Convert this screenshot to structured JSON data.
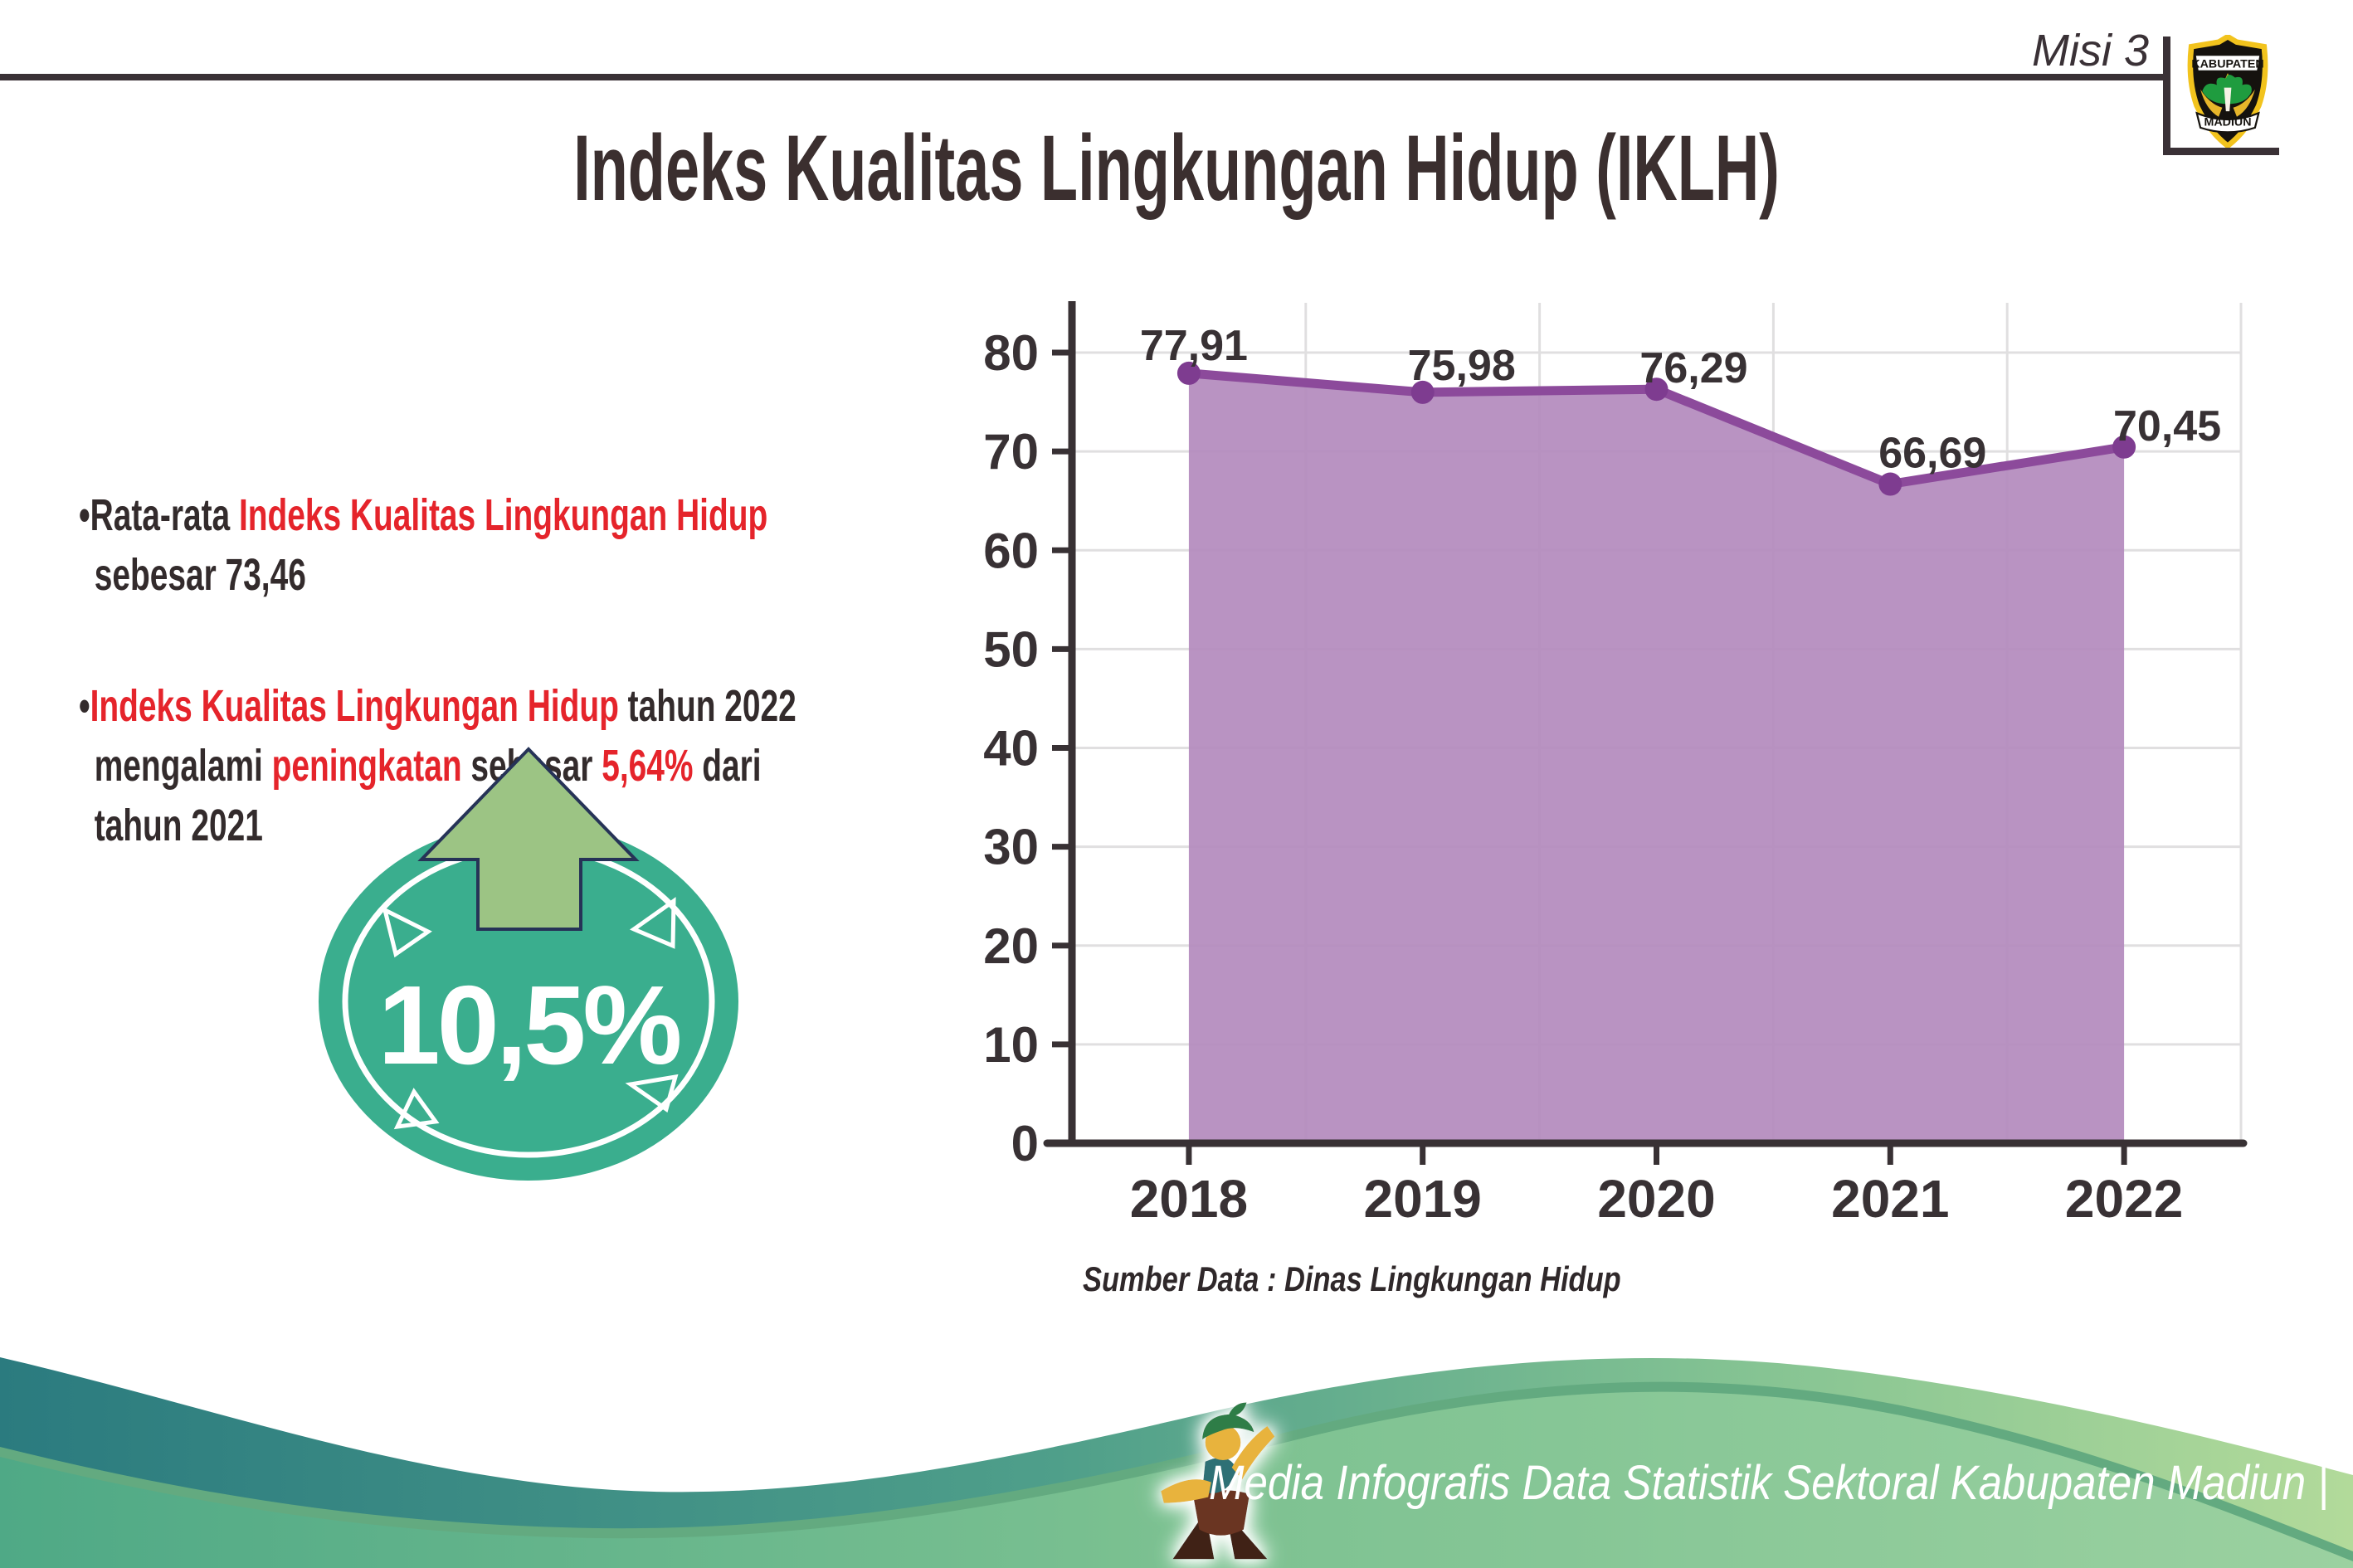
{
  "header": {
    "misi_label": "Misi 3",
    "title": "Indeks Kualitas Lingkungan Hidup (IKLH)"
  },
  "logo": {
    "top_text": "KABUPATEN",
    "bottom_text": "MADIUN"
  },
  "bullets": {
    "marker": "•",
    "items": [
      {
        "lines": [
          [
            {
              "t": "Rata-rata ",
              "red": false
            },
            {
              "t": "Indeks Kualitas Lingkungan Hidup",
              "red": true
            }
          ],
          [
            {
              "t": "sebesar 73,46",
              "red": false
            }
          ]
        ]
      },
      {
        "lines": [
          [
            {
              "t": "Indeks Kualitas Lingkungan Hidup",
              "red": true
            },
            {
              "t": " tahun 2022",
              "red": false
            }
          ],
          [
            {
              "t": "mengalami ",
              "red": false
            },
            {
              "t": "peningkatan",
              "red": true
            },
            {
              "t": " sebesar ",
              "red": false
            },
            {
              "t": "5,64%",
              "red": true
            },
            {
              "t": " dari",
              "red": false
            }
          ],
          [
            {
              "t": "tahun 2021",
              "red": false
            }
          ]
        ]
      }
    ]
  },
  "badge": {
    "value": "10,5%",
    "circle_color": "#3aae8e",
    "arrow_color": "#9cc484",
    "arrow_outline": "#263357"
  },
  "chart_data": {
    "type": "area",
    "categories": [
      "2018",
      "2019",
      "2020",
      "2021",
      "2022"
    ],
    "values": [
      77.91,
      75.98,
      76.29,
      66.69,
      70.45
    ],
    "value_labels": [
      "77,91",
      "75,98",
      "76,29",
      "66,69",
      "70,45"
    ],
    "title": "",
    "xlabel": "",
    "ylabel": "",
    "ylim": [
      0,
      80
    ],
    "ytick_step": 10,
    "grid": true,
    "legend": false,
    "area_color": "#b38abd",
    "line_color": "#8c4a9b",
    "point_color": "#7e3c90",
    "grid_color": "#e0dfe0",
    "axis_color": "#383134",
    "source_note": "Sumber Data : Dinas Lingkungan Hidup"
  },
  "footer": {
    "credit_text": "Media Infografis Data Statistik Sektoral Kabupaten Madiun |"
  },
  "colors": {
    "red": "#e5242b",
    "dark": "#332b2c",
    "teal_wave": "#2b7b7f",
    "light_green_wave": "#9bd1a0"
  }
}
